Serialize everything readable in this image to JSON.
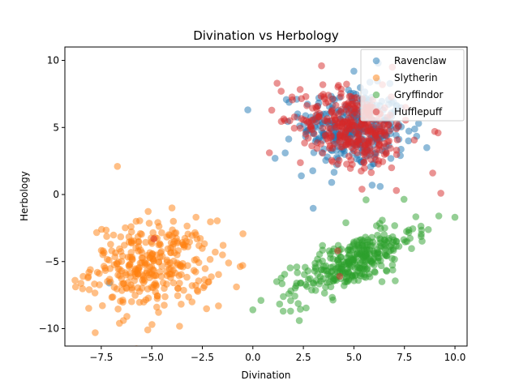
{
  "chart_data": {
    "type": "scatter",
    "title": "Divination vs Herbology",
    "xlabel": "Divination",
    "ylabel": "Herbology",
    "xlim": [
      -9.3,
      10.6
    ],
    "ylim": [
      -11.3,
      11.0
    ],
    "xticks": [
      -7.5,
      -5.0,
      -2.5,
      0.0,
      2.5,
      5.0,
      7.5,
      10.0
    ],
    "xtick_labels": [
      "−7.5",
      "−5.0",
      "−2.5",
      "0.0",
      "2.5",
      "5.0",
      "7.5",
      "10.0"
    ],
    "yticks": [
      -10,
      -5,
      0,
      5,
      10
    ],
    "ytick_labels": [
      "−10",
      "−5",
      "0",
      "5",
      "10"
    ],
    "grid": false,
    "legend_position": "top-right",
    "series": [
      {
        "name": "Ravenclaw",
        "color": "#1f77b4",
        "clusters": [
          {
            "cx": 5.0,
            "cy": 5.0,
            "sx": 1.3,
            "sy": 1.5,
            "corr": -0.1,
            "n": 320
          }
        ],
        "points": [
          [
            -7.1,
            -6.6
          ],
          [
            1.6,
            3.1
          ],
          [
            1.1,
            2.7
          ],
          [
            2.4,
            1.4
          ],
          [
            3.9,
            0.9
          ],
          [
            5.9,
            0.7
          ],
          [
            6.3,
            0.6
          ],
          [
            7.3,
            2.9
          ],
          [
            7.7,
            4.0
          ],
          [
            6.2,
            9.8
          ],
          [
            5.0,
            9.2
          ],
          [
            8.2,
            5.3
          ]
        ]
      },
      {
        "name": "Slytherin",
        "color": "#ff7f0e",
        "clusters": [
          {
            "cx": -5.0,
            "cy": -5.3,
            "sx": 1.5,
            "sy": 1.6,
            "corr": 0.05,
            "n": 320
          }
        ],
        "points": [
          [
            -6.7,
            2.1
          ],
          [
            -7.8,
            -10.3
          ],
          [
            -8.8,
            -6.4
          ],
          [
            -1.2,
            -5.1
          ],
          [
            -5.2,
            -10.1
          ],
          [
            -1.7,
            -8.3
          ],
          [
            -6.6,
            -9.6
          ],
          [
            -4.0,
            -1.0
          ],
          [
            -1.5,
            -4.5
          ]
        ]
      },
      {
        "name": "Gryffindor",
        "color": "#2ca02c",
        "clusters": [
          {
            "cx": 5.0,
            "cy": -5.0,
            "sx": 1.5,
            "sy": 1.3,
            "corr": 0.72,
            "n": 320
          }
        ],
        "points": [
          [
            0.0,
            -8.6
          ],
          [
            0.4,
            -7.9
          ],
          [
            10.0,
            -1.7
          ],
          [
            9.2,
            -1.6
          ],
          [
            5.6,
            -0.4
          ],
          [
            1.5,
            -8.7
          ],
          [
            2.3,
            -9.4
          ],
          [
            4.6,
            -2.1
          ]
        ]
      },
      {
        "name": "Hufflepuff",
        "color": "#d62728",
        "clusters": [
          {
            "cx": 5.0,
            "cy": 5.0,
            "sx": 1.3,
            "sy": 1.4,
            "corr": -0.22,
            "n": 330
          }
        ],
        "points": [
          [
            -4.9,
            -3.3
          ],
          [
            4.2,
            -4.2
          ],
          [
            4.3,
            -6.1
          ],
          [
            1.2,
            8.3
          ],
          [
            1.4,
            7.7
          ],
          [
            9.3,
            0.1
          ],
          [
            9.0,
            4.7
          ],
          [
            8.9,
            1.6
          ],
          [
            5.4,
            0.4
          ],
          [
            7.1,
            0.3
          ],
          [
            6.9,
            9.5
          ],
          [
            3.4,
            9.6
          ]
        ]
      }
    ]
  }
}
